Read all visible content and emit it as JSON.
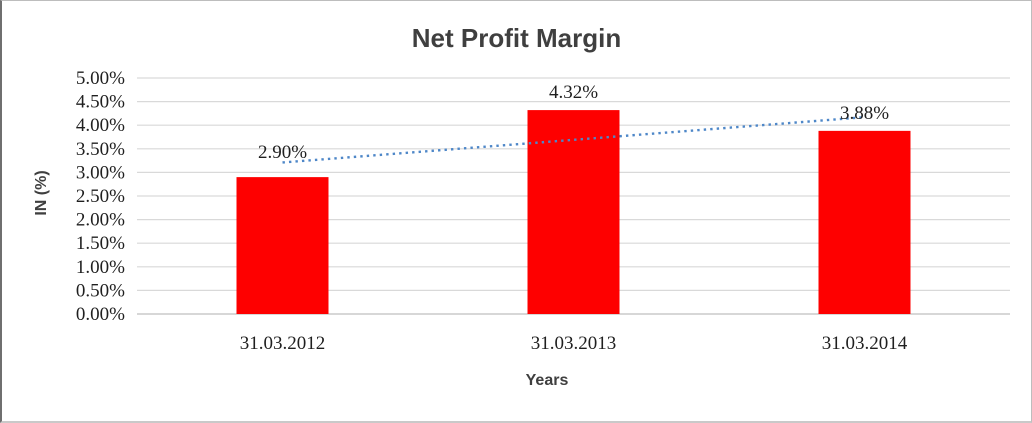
{
  "chart_data": {
    "type": "bar",
    "title": "Net Profit Margin",
    "xlabel": "Years",
    "ylabel": "IN (%)",
    "categories": [
      "31.03.2012",
      "31.03.2013",
      "31.03.2014"
    ],
    "series": [
      {
        "name": "Net Profit Margin",
        "values": [
          2.9,
          4.32,
          3.88
        ]
      }
    ],
    "data_labels": [
      "2.90%",
      "4.32%",
      "3.88%"
    ],
    "ylim": [
      0,
      5
    ],
    "ytick_step": 0.5,
    "ytick_labels": [
      "0.00%",
      "0.50%",
      "1.00%",
      "1.50%",
      "2.00%",
      "2.50%",
      "3.00%",
      "3.50%",
      "4.00%",
      "4.50%",
      "5.00%"
    ],
    "grid": true,
    "legend": "none",
    "bar_color": "#fe0000",
    "grid_color": "#d9d9d9",
    "axis_line_color": "#bfbfbf",
    "label_offsets": [
      -19,
      -12,
      -12
    ],
    "trendline": {
      "type": "linear",
      "style": "dotted",
      "color": "#4e87c8",
      "start_value": 3.21,
      "end_value": 4.17
    }
  }
}
